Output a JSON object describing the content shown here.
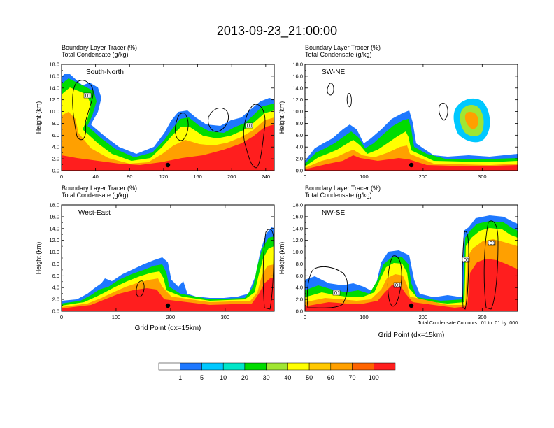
{
  "title": "2013-09-23_21:00:00",
  "colors": {
    "c1": "#ffffff",
    "c2": "#1e78ff",
    "c3": "#00c8ff",
    "c4": "#00e6c8",
    "c5": "#00dc00",
    "c6": "#a0e632",
    "c7": "#ffff00",
    "c8": "#ffc800",
    "c9": "#ffa000",
    "c10": "#ff6400",
    "c11": "#ff1e1e"
  },
  "colorbar": {
    "labels": [
      "1",
      "5",
      "10",
      "20",
      "30",
      "40",
      "50",
      "60",
      "70",
      "100"
    ]
  },
  "chart_data": [
    {
      "type": "area",
      "panel": "South-North",
      "top_left_label": "Boundary Layer Tracer   (%)",
      "top_left_label2": "Total Condensate   (g/kg)",
      "xlim": [
        0,
        250
      ],
      "ylim": [
        0,
        18
      ],
      "ylabel": "Height (km)",
      "x_ticks": [
        "0",
        "40",
        "80",
        "120",
        "160",
        "200",
        "240"
      ],
      "y_ticks": [
        "0.0",
        "2.0",
        "4.0",
        "6.0",
        "8.0",
        "10.0",
        "12.0",
        "14.0",
        "16.0",
        "18.0"
      ],
      "contour_label": ".01"
    },
    {
      "type": "area",
      "panel": "SW-NE",
      "top_left_label": "Boundary Layer Tracer   (%)",
      "top_left_label2": "Total Condensate   (g/kg)",
      "xlim": [
        0,
        360
      ],
      "ylim": [
        0,
        18
      ],
      "ylabel": "Height (km)",
      "x_ticks": [
        "0",
        "100",
        "200",
        "300"
      ],
      "y_ticks": [
        "0.0",
        "2.0",
        "4.0",
        "6.0",
        "8.0",
        "10.0",
        "12.0",
        "14.0",
        "16.0",
        "18.0"
      ]
    },
    {
      "type": "area",
      "panel": "West-East",
      "top_left_label": "Boundary Layer Tracer   (%)",
      "top_left_label2": "Total Condensate   (g/kg)",
      "xlim": [
        0,
        390
      ],
      "ylim": [
        0,
        18
      ],
      "ylabel": "Height (km)",
      "xlabel": "Grid Point (dx=15km)",
      "x_ticks": [
        "0",
        "100",
        "200",
        "300"
      ],
      "y_ticks": [
        "0.0",
        "2.0",
        "4.0",
        "6.0",
        "8.0",
        "10.0",
        "12.0",
        "14.0",
        "16.0",
        "18.0"
      ]
    },
    {
      "type": "area",
      "panel": "NW-SE",
      "top_left_label": "Boundary Layer Tracer   (%)",
      "top_left_label2": "Total Condensate   (g/kg)",
      "xlim": [
        0,
        360
      ],
      "ylim": [
        0,
        18
      ],
      "ylabel": "Height (km)",
      "xlabel": "Grid Point (dx=15km)",
      "x_ticks": [
        "0",
        "100",
        "200",
        "300"
      ],
      "y_ticks": [
        "0.0",
        "2.0",
        "4.0",
        "6.0",
        "8.0",
        "10.0",
        "12.0",
        "14.0",
        "16.0",
        "18.0"
      ],
      "contour_label": ".01",
      "contour_note": "Total Condensate Contours: .01 to .01 by .000"
    }
  ]
}
